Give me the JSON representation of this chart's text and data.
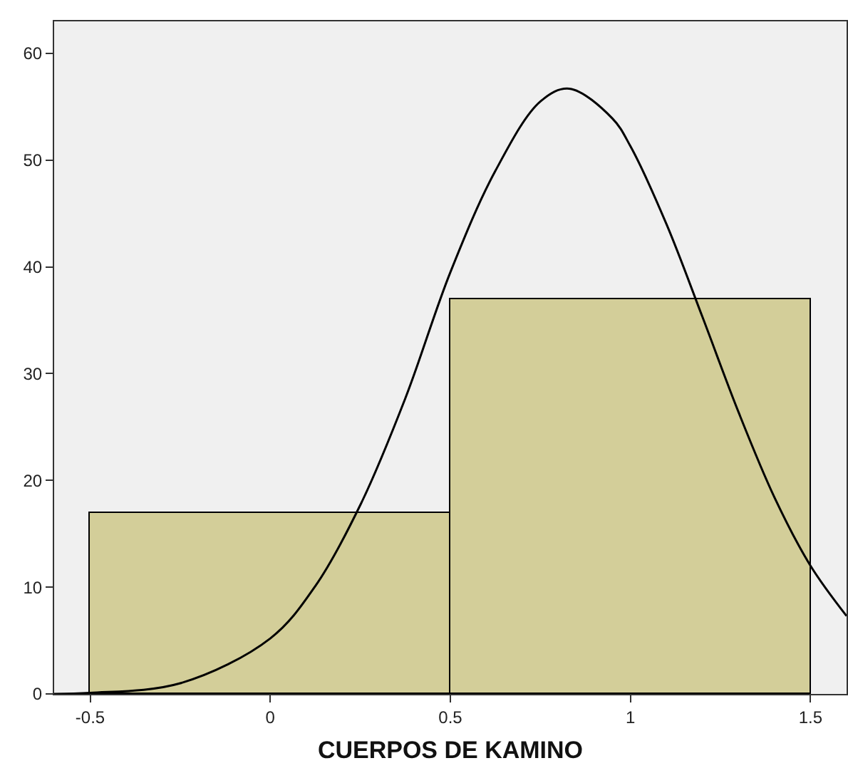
{
  "chart_data": {
    "type": "histogram",
    "xlabel": "CUERPOS DE KAMINO",
    "bins": [
      -0.5,
      0.5,
      1.5
    ],
    "values": [
      17,
      37
    ],
    "color": "#d3ce99",
    "series": [
      {
        "type": "line",
        "color": "#000000",
        "x": [
          -0.6,
          -0.5,
          -0.25,
          0,
          0.125,
          0.25,
          0.375,
          0.5,
          0.625,
          0.75,
          0.83,
          0.95,
          1.0,
          1.1,
          1.2,
          1.3,
          1.4,
          1.5,
          1.6
        ],
        "values": [
          0,
          0.1,
          1.0,
          5.2,
          10.1,
          17.7,
          27.7,
          39.5,
          49.0,
          55.5,
          56.7,
          53.9,
          51.3,
          44.0,
          35.3,
          26.4,
          18.4,
          12.0,
          7.3
        ]
      }
    ],
    "xlim": [
      -0.6,
      1.6
    ],
    "xticks": [
      -0.5,
      0,
      0.5,
      1,
      1.5
    ],
    "ylim": [
      0,
      63
    ],
    "yticks": [
      0,
      10,
      20,
      30,
      40,
      50,
      60
    ],
    "grid": false,
    "marker": "none",
    "line_style": "solid"
  }
}
